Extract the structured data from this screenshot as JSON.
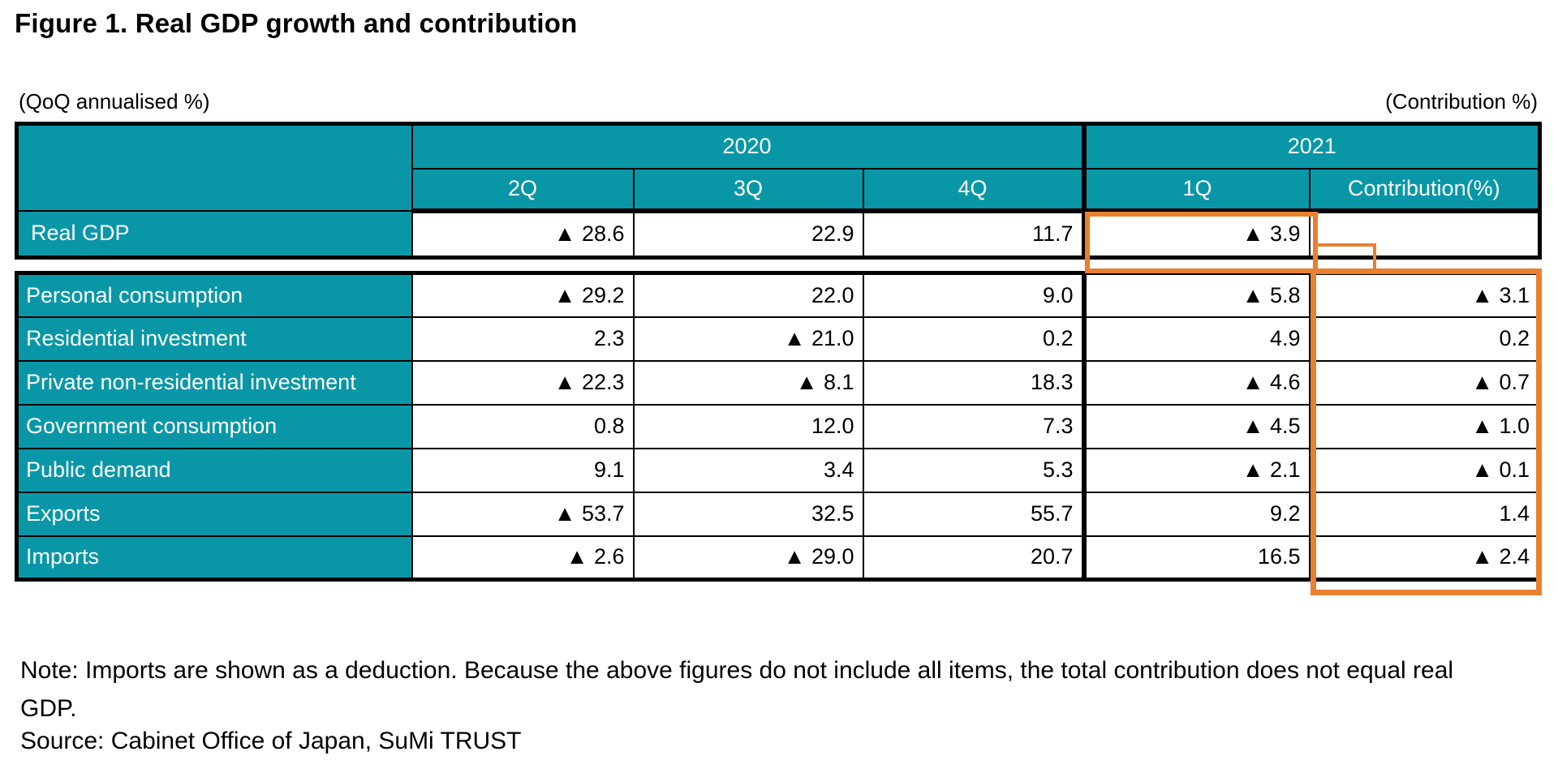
{
  "title": "Figure 1. Real GDP growth and contribution",
  "units": {
    "left": "(QoQ annualised %)",
    "right": "(Contribution %)"
  },
  "note": "Note: Imports are shown as a deduction. Because the above figures do not include all items, the total contribution does not equal real GDP.",
  "source": "Source: Cabinet Office of Japan, SuMi TRUST",
  "colors": {
    "teal": "#0997A8",
    "orange": "#E8802F",
    "border": "#000000"
  },
  "chart_data": {
    "type": "table",
    "title": "Figure 1. Real GDP growth and contribution",
    "unit_left": "(QoQ annualised %)",
    "unit_right": "(Contribution %)",
    "negative_marker": "▲ denotes a negative value",
    "year_groups": [
      {
        "label": "2020",
        "span": 3
      },
      {
        "label": "2021",
        "span": 2
      }
    ],
    "columns": [
      "2Q",
      "3Q",
      "4Q",
      "1Q",
      "Contribution(%)"
    ],
    "real_gdp": {
      "label": "Real GDP",
      "display": [
        "▲ 28.6",
        "22.9",
        "11.7",
        "▲ 3.9",
        ""
      ],
      "values": [
        -28.6,
        22.9,
        11.7,
        -3.9,
        null
      ]
    },
    "rows": [
      {
        "label": "Personal consumption",
        "display": [
          "▲ 29.2",
          "22.0",
          "9.0",
          "▲ 5.8",
          "▲ 3.1"
        ],
        "values": [
          -29.2,
          22.0,
          9.0,
          -5.8,
          -3.1
        ]
      },
      {
        "label": "Residential investment",
        "display": [
          "2.3",
          "▲ 21.0",
          "0.2",
          "4.9",
          "0.2"
        ],
        "values": [
          2.3,
          -21.0,
          0.2,
          4.9,
          0.2
        ]
      },
      {
        "label": "Private non-residential investment",
        "display": [
          "▲ 22.3",
          "▲ 8.1",
          "18.3",
          "▲ 4.6",
          "▲ 0.7"
        ],
        "values": [
          -22.3,
          -8.1,
          18.3,
          -4.6,
          -0.7
        ]
      },
      {
        "label": "Government consumption",
        "display": [
          "0.8",
          "12.0",
          "7.3",
          "▲ 4.5",
          "▲ 1.0"
        ],
        "values": [
          0.8,
          12.0,
          7.3,
          -4.5,
          -1.0
        ]
      },
      {
        "label": "Public demand",
        "display": [
          "9.1",
          "3.4",
          "5.3",
          "▲ 2.1",
          "▲ 0.1"
        ],
        "values": [
          9.1,
          3.4,
          5.3,
          -2.1,
          -0.1
        ]
      },
      {
        "label": "Exports",
        "display": [
          "▲ 53.7",
          "32.5",
          "55.7",
          "9.2",
          "1.4"
        ],
        "values": [
          -53.7,
          32.5,
          55.7,
          9.2,
          1.4
        ]
      },
      {
        "label": "Imports",
        "display": [
          "▲ 2.6",
          "▲ 29.0",
          "20.7",
          "16.5",
          "▲ 2.4"
        ],
        "values": [
          -2.6,
          -29.0,
          20.7,
          16.5,
          -2.4
        ]
      }
    ]
  }
}
